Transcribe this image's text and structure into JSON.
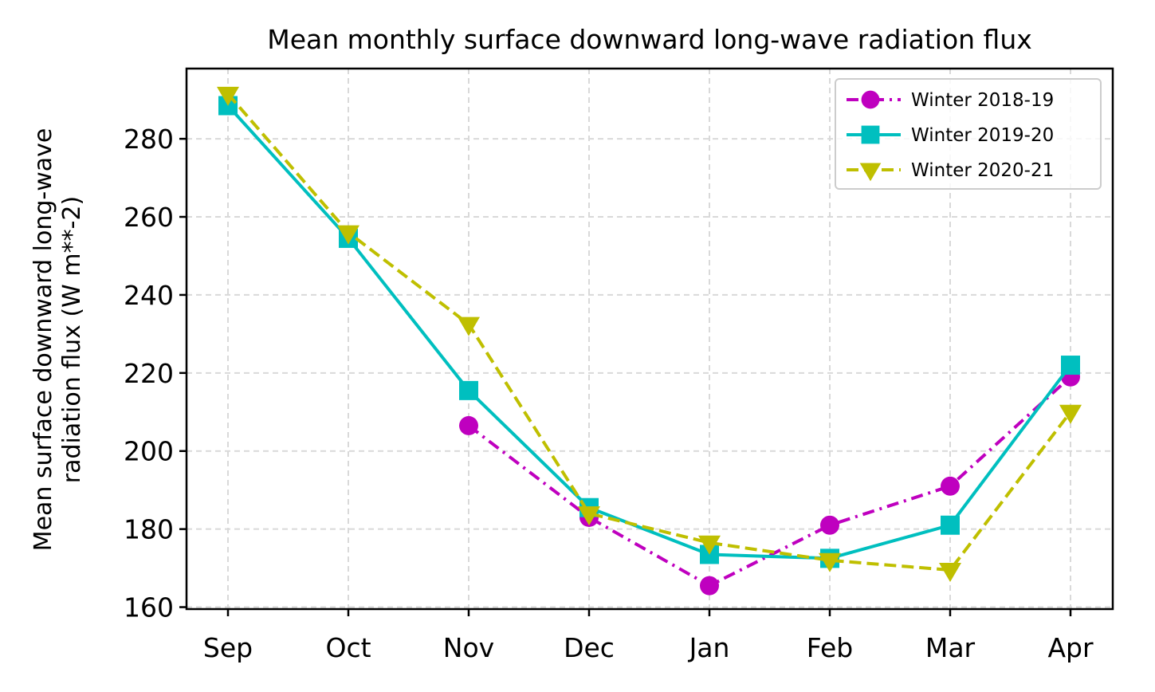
{
  "chart_data": {
    "type": "line",
    "title": "Mean monthly surface downward long-wave radiation flux",
    "xlabel": "",
    "ylabel_lines": [
      "Mean surface downward long-wave",
      "radiation flux (W m**-2)"
    ],
    "categories": [
      "Sep",
      "Oct",
      "Nov",
      "Dec",
      "Jan",
      "Feb",
      "Mar",
      "Apr"
    ],
    "yticks": [
      160,
      180,
      200,
      220,
      240,
      260,
      280
    ],
    "ylim": [
      159.5,
      298
    ],
    "grid": true,
    "legend_position": "top-right",
    "series": [
      {
        "name": "Winter 2018-19",
        "color": "#bf00bf",
        "line_style": "dash-dot",
        "marker": "circle",
        "values": [
          null,
          null,
          206.5,
          183,
          165.5,
          181,
          191,
          219
        ]
      },
      {
        "name": "Winter 2019-20",
        "color": "#00bfbf",
        "line_style": "solid",
        "marker": "square",
        "values": [
          288.5,
          254.5,
          215.5,
          185.5,
          173.5,
          172.5,
          181,
          222
        ]
      },
      {
        "name": "Winter 2020-21",
        "color": "#bfbf00",
        "line_style": "dashed",
        "marker": "triangle-down",
        "values": [
          291.5,
          256,
          232.5,
          184,
          176.5,
          172,
          169.5,
          210
        ]
      }
    ]
  }
}
